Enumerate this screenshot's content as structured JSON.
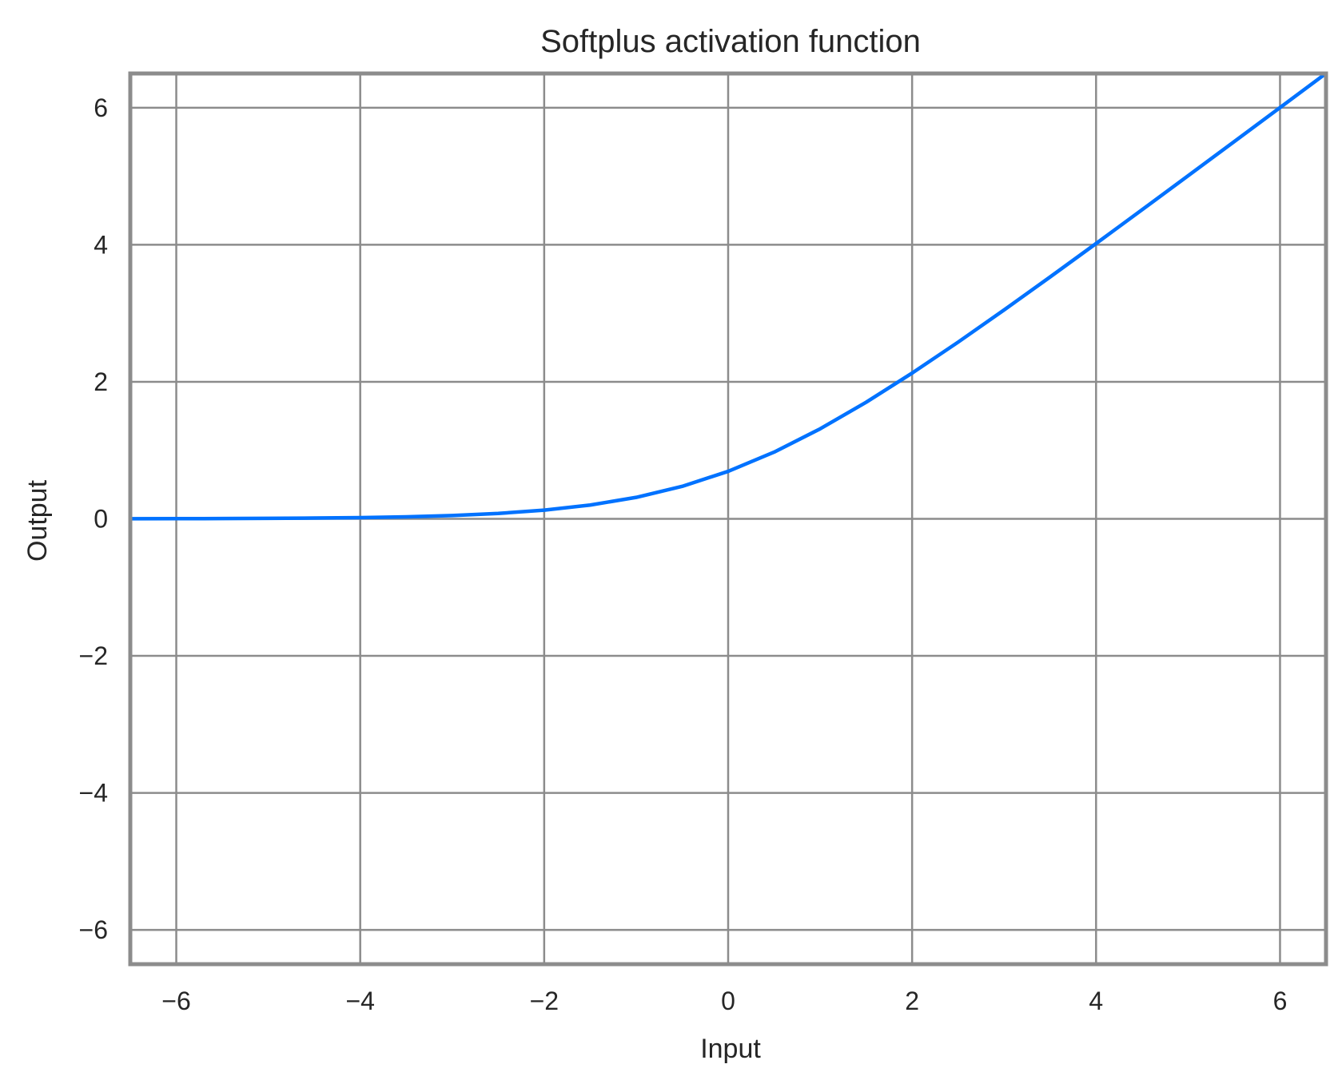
{
  "chart_data": {
    "type": "line",
    "title": "Softplus activation function",
    "xlabel": "Input",
    "ylabel": "Output",
    "xlim": [
      -6.5,
      6.5
    ],
    "ylim": [
      -6.5,
      6.5
    ],
    "xticks": [
      -6,
      -4,
      -2,
      0,
      2,
      4,
      6
    ],
    "yticks": [
      -6,
      -4,
      -2,
      0,
      2,
      4,
      6
    ],
    "xtick_labels": [
      "−6",
      "−4",
      "−2",
      "0",
      "2",
      "4",
      "6"
    ],
    "ytick_labels": [
      "−6",
      "−4",
      "−2",
      "0",
      "2",
      "4",
      "6"
    ],
    "grid": true,
    "legend": "none",
    "series": [
      {
        "color": "#0072ff",
        "x": [
          -6.5,
          -6,
          -5.5,
          -5,
          -4.5,
          -4,
          -3.5,
          -3,
          -2.5,
          -2,
          -1.5,
          -1,
          -0.5,
          0,
          0.5,
          1,
          1.5,
          2,
          2.5,
          3,
          3.5,
          4,
          4.5,
          5,
          5.5,
          6,
          6.5
        ],
        "y": [
          0.0015,
          0.0025,
          0.0041,
          0.0067,
          0.011,
          0.0181,
          0.0298,
          0.0486,
          0.0789,
          0.1269,
          0.2014,
          0.3133,
          0.4741,
          0.6931,
          0.9741,
          1.3133,
          1.7014,
          2.1269,
          2.5789,
          3.0486,
          3.5298,
          4.0181,
          4.511,
          5.0067,
          5.5041,
          6.0025,
          6.5015
        ]
      }
    ]
  }
}
